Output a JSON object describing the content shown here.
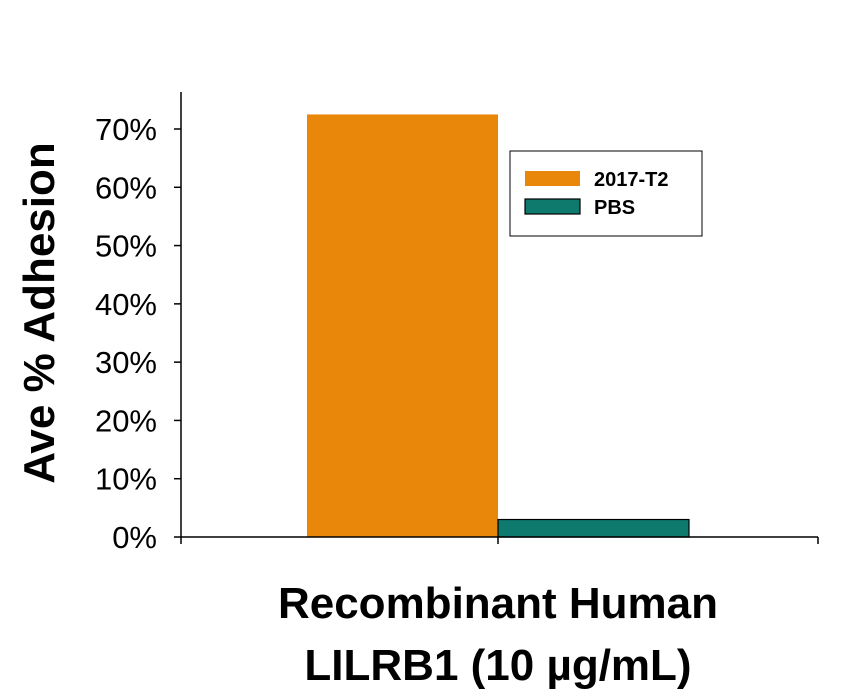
{
  "chart_data": {
    "type": "bar",
    "title": "",
    "ylabel": "Ave % Adhesion",
    "xlabel_lines": [
      "Recombinant Human",
      "LILRB1 (10 µg/mL)"
    ],
    "categories": [
      ""
    ],
    "series": [
      {
        "name": "2017-T2",
        "color": "#E8870A",
        "values": [
          0.725
        ]
      },
      {
        "name": "PBS",
        "color": "#0E7A6E",
        "values": [
          0.03
        ]
      }
    ],
    "ylim": [
      0,
      0.7
    ],
    "yticks": [
      0,
      0.1,
      0.2,
      0.3,
      0.4,
      0.5,
      0.6,
      0.7
    ],
    "ytick_labels": [
      "0%",
      "10%",
      "20%",
      "30%",
      "40%",
      "50%",
      "60%",
      "70%"
    ],
    "grid": false,
    "legend_position": "top-right"
  }
}
